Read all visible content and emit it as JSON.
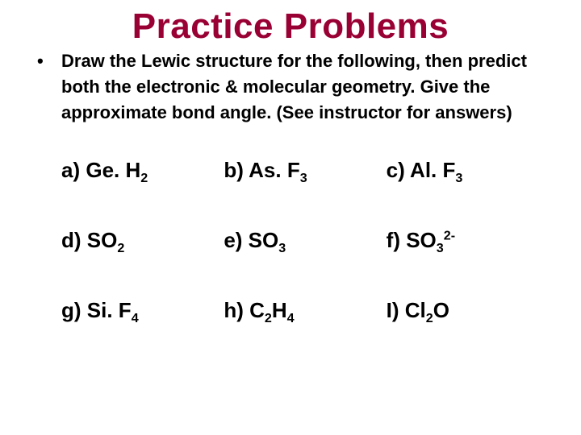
{
  "title": "Practice Problems",
  "bullet": "•",
  "instruction_parts": {
    "p1": " Draw the Lewic structure for the following, then predict both the electronic & molecular geometry.  Give the approximate bond angle. (See instructor for answers)"
  },
  "items": {
    "a": {
      "letter": "a)",
      "pre": "Ge. H",
      "sub": "2",
      "post": ""
    },
    "b": {
      "letter": "b) ",
      "pre": "As. F",
      "sub": "3",
      "post": ""
    },
    "c": {
      "letter": "c) ",
      "pre": "Al. F",
      "sub": "3",
      "post": ""
    },
    "d": {
      "letter": "d)",
      "pre": "SO",
      "sub": "2",
      "post": ""
    },
    "e": {
      "letter": "e) ",
      "pre": "SO",
      "sub": "3",
      "post": ""
    },
    "f": {
      "letter": "f) ",
      "pre": "SO",
      "sub": "3",
      "sup": "2-"
    },
    "g": {
      "letter": "g)",
      "pre": "Si. F",
      "sub": "4",
      "post": ""
    },
    "h": {
      "letter": "h) ",
      "pre": "C",
      "sub": "2",
      "mid": "H",
      "sub2": "4"
    },
    "i": {
      "letter": "I) ",
      "pre": "Cl",
      "sub": "2",
      "mid": "O"
    }
  },
  "colors": {
    "title": "#990033",
    "background": "#ffffff",
    "text": "#000000"
  },
  "typography": {
    "title_fontsize": 44,
    "instruction_fontsize": 22,
    "item_fontsize": 26,
    "font_family": "Arial"
  }
}
